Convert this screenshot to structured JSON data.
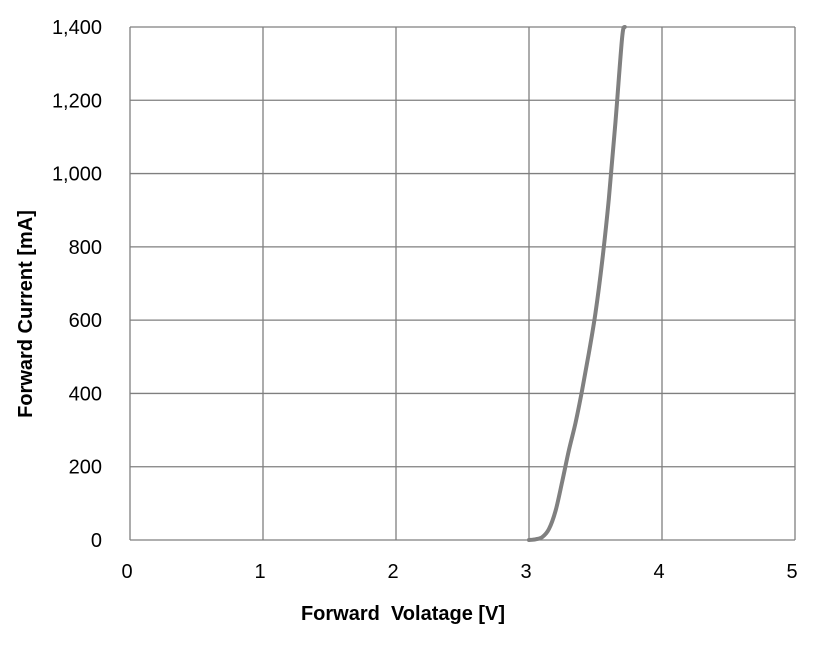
{
  "chart_data": {
    "type": "line",
    "title": "",
    "xlabel": "Forward  Volatage [V]",
    "ylabel": "Forward Current [mA]",
    "xlim": [
      0,
      5
    ],
    "ylim": [
      0,
      1400
    ],
    "grid": true,
    "x_ticks": [
      0,
      1,
      2,
      3,
      4,
      5
    ],
    "x_tick_labels": [
      "0",
      "1",
      "2",
      "3",
      "4",
      "5"
    ],
    "y_ticks": [
      0,
      200,
      400,
      600,
      800,
      1000,
      1200,
      1400
    ],
    "y_tick_labels": [
      "0",
      "200",
      "400",
      "600",
      "800",
      "1,000",
      "1,200",
      "1,400"
    ],
    "series": [
      {
        "color": "#808080",
        "x": [
          3.0,
          3.05,
          3.1,
          3.15,
          3.2,
          3.25,
          3.3,
          3.35,
          3.4,
          3.45,
          3.5,
          3.55,
          3.6,
          3.65,
          3.7,
          3.72
        ],
        "y": [
          0,
          2,
          8,
          30,
          80,
          160,
          245,
          320,
          410,
          510,
          620,
          760,
          930,
          1140,
          1370,
          1400
        ]
      }
    ]
  }
}
